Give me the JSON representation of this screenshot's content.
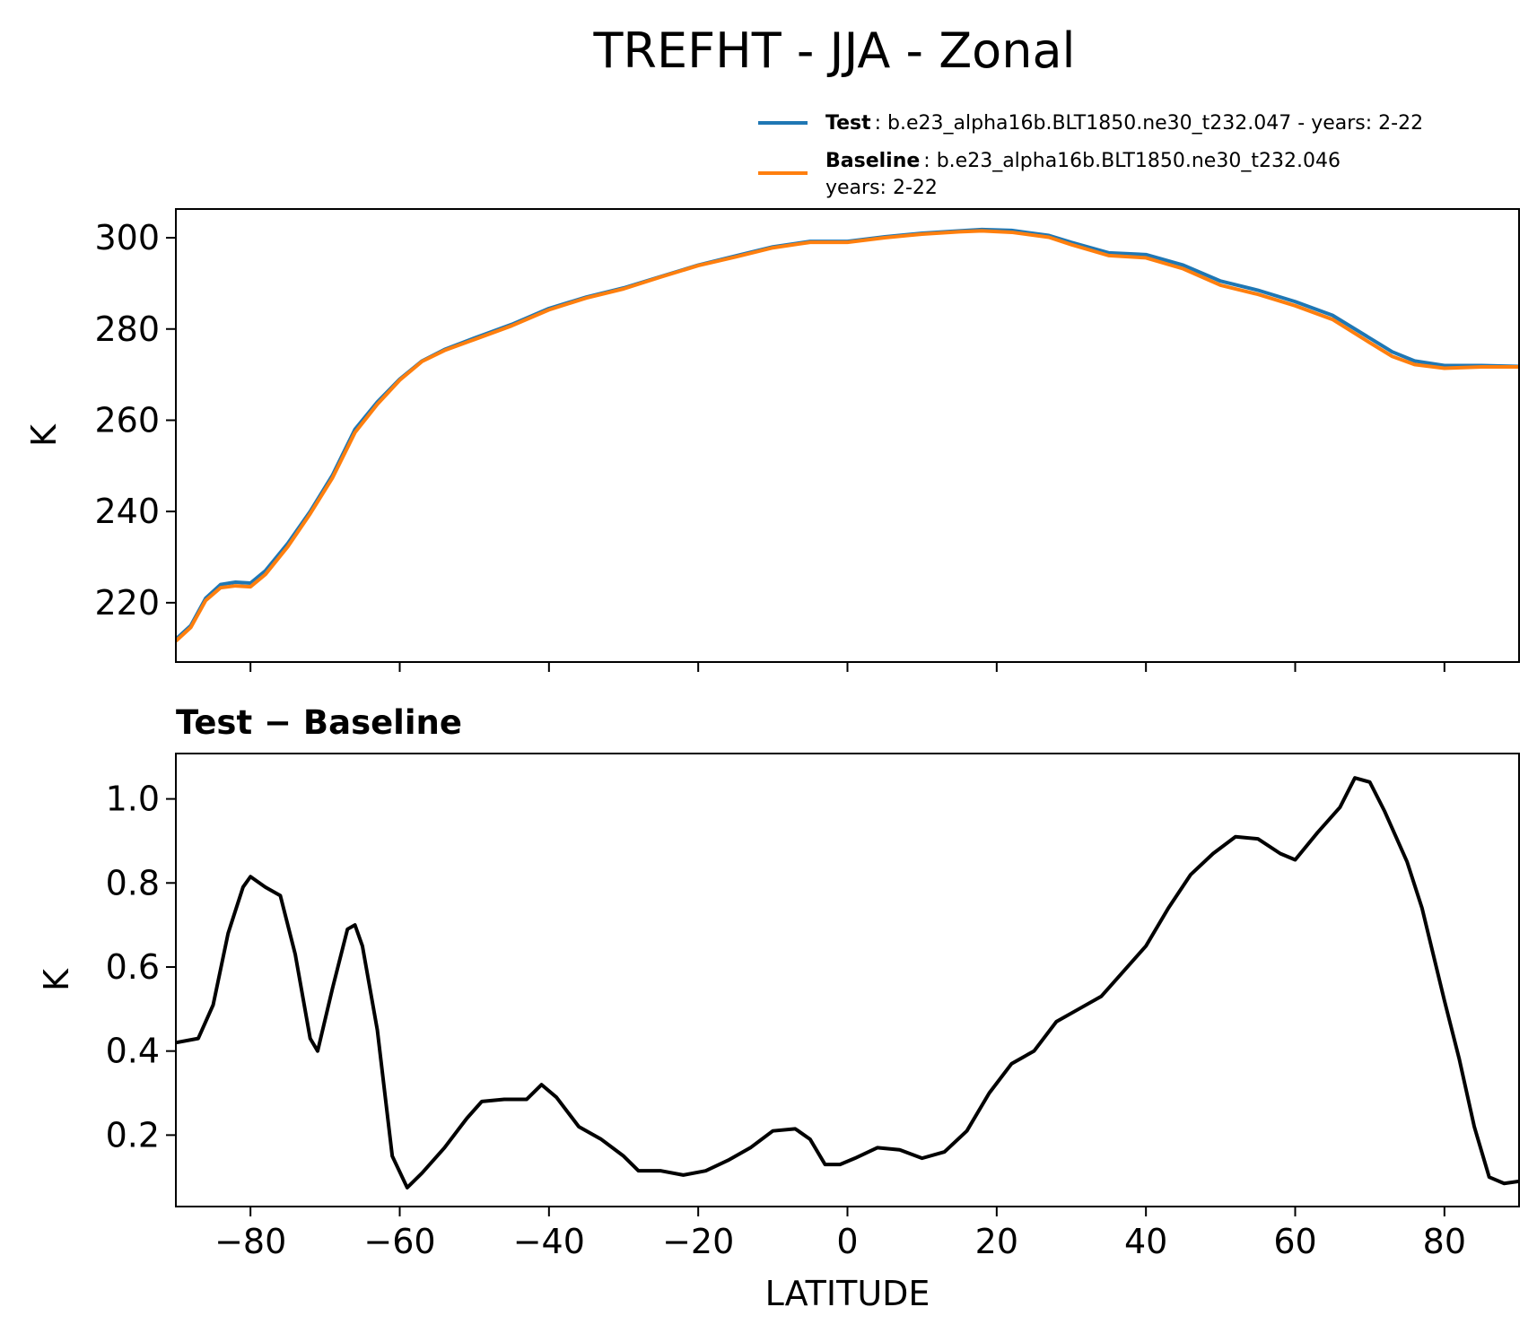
{
  "chart_data": [
    {
      "type": "line",
      "title": "TREFHT - JJA - Zonal",
      "ylabel": "K",
      "x": [
        -90,
        -88,
        -86,
        -84,
        -82,
        -80,
        -78,
        -75,
        -72,
        -69,
        -66,
        -63,
        -60,
        -57,
        -54,
        -50,
        -45,
        -40,
        -35,
        -30,
        -25,
        -20,
        -15,
        -10,
        -5,
        0,
        5,
        10,
        15,
        18,
        22,
        27,
        30,
        35,
        40,
        45,
        50,
        55,
        60,
        65,
        70,
        73,
        76,
        80,
        85,
        90
      ],
      "series": [
        {
          "name": "Test",
          "description": [
            ": b.e23_alpha16b.BLT1850.ne30_t232.047 - years: 2-22"
          ],
          "color": "#1f77b4",
          "values": [
            212,
            215,
            221,
            224,
            224.5,
            224.3,
            227,
            233,
            240,
            248,
            258,
            264,
            269,
            273,
            275.5,
            278,
            281,
            284.5,
            287,
            289,
            291.5,
            294,
            296,
            298,
            299.2,
            299.2,
            300.2,
            301,
            301.5,
            301.8,
            301.6,
            300.5,
            299,
            296.7,
            296.3,
            294,
            290.5,
            288.5,
            286,
            283,
            278,
            275,
            273,
            272,
            272,
            271.8
          ]
        },
        {
          "name": "Baseline",
          "description": [
            ": b.e23_alpha16b.BLT1850.ne30_t232.046",
            "years: 2-22"
          ],
          "color": "#ff7f0e",
          "values": [
            211.6,
            214.6,
            220.5,
            223.3,
            223.7,
            223.5,
            226.2,
            232.3,
            239.5,
            247.4,
            257.3,
            263.5,
            268.8,
            272.9,
            275.3,
            277.7,
            280.7,
            284.2,
            286.8,
            288.8,
            291.4,
            293.9,
            295.8,
            297.8,
            299.0,
            299.0,
            300.0,
            300.8,
            301.3,
            301.5,
            301.2,
            300.1,
            298.5,
            296.1,
            295.6,
            293.2,
            289.6,
            287.6,
            285.1,
            282.1,
            277.0,
            274.0,
            272.2,
            271.4,
            271.7,
            271.7
          ]
        }
      ],
      "xlim": [
        -90,
        90
      ],
      "xticks": [
        -80,
        -60,
        -40,
        -20,
        0,
        20,
        40,
        60,
        80
      ],
      "ylim": [
        207,
        306.3
      ],
      "yticks": [
        220,
        240,
        260,
        280,
        300
      ],
      "legend": "upper right"
    },
    {
      "type": "line",
      "title": "Test − Baseline",
      "ylabel": "K",
      "xlabel": "LATITUDE",
      "x": [
        -90,
        -87,
        -85,
        -83,
        -81,
        -80,
        -78,
        -76,
        -74,
        -72,
        -71,
        -69,
        -67,
        -66,
        -65,
        -63,
        -61,
        -59,
        -57,
        -54,
        -51,
        -49,
        -46,
        -43,
        -41,
        -39,
        -36,
        -33,
        -30,
        -28,
        -25,
        -22,
        -19,
        -16,
        -13,
        -10,
        -7,
        -5,
        -3,
        -1,
        1,
        4,
        7,
        10,
        13,
        16,
        19,
        22,
        25,
        28,
        31,
        34,
        37,
        40,
        43,
        46,
        49,
        52,
        55,
        58,
        60,
        63,
        66,
        68,
        70,
        72,
        75,
        77,
        80,
        82,
        84,
        86,
        88,
        90
      ],
      "series": [
        {
          "name": "Test − Baseline",
          "color": "#000000",
          "values": [
            0.42,
            0.43,
            0.51,
            0.68,
            0.79,
            0.815,
            0.79,
            0.77,
            0.63,
            0.43,
            0.4,
            0.55,
            0.69,
            0.7,
            0.65,
            0.45,
            0.15,
            0.075,
            0.11,
            0.17,
            0.24,
            0.28,
            0.285,
            0.285,
            0.32,
            0.29,
            0.22,
            0.19,
            0.15,
            0.115,
            0.115,
            0.105,
            0.115,
            0.14,
            0.17,
            0.21,
            0.215,
            0.19,
            0.13,
            0.13,
            0.145,
            0.17,
            0.165,
            0.145,
            0.16,
            0.21,
            0.3,
            0.37,
            0.4,
            0.47,
            0.5,
            0.53,
            0.59,
            0.65,
            0.74,
            0.82,
            0.87,
            0.91,
            0.905,
            0.87,
            0.855,
            0.92,
            0.98,
            1.05,
            1.04,
            0.97,
            0.85,
            0.74,
            0.52,
            0.38,
            0.22,
            0.1,
            0.085,
            0.09
          ]
        }
      ],
      "xlim": [
        -90,
        90
      ],
      "xticks": [
        {
          "value": -80,
          "label": "−80"
        },
        {
          "value": -60,
          "label": "−60"
        },
        {
          "value": -40,
          "label": "−40"
        },
        {
          "value": -20,
          "label": "−20"
        },
        0,
        20,
        40,
        60,
        80
      ],
      "ylim": [
        0.03,
        1.108
      ],
      "yticks": [
        0.2,
        0.4,
        0.6,
        0.8,
        {
          "value": 1,
          "label": "1.0"
        }
      ]
    }
  ]
}
